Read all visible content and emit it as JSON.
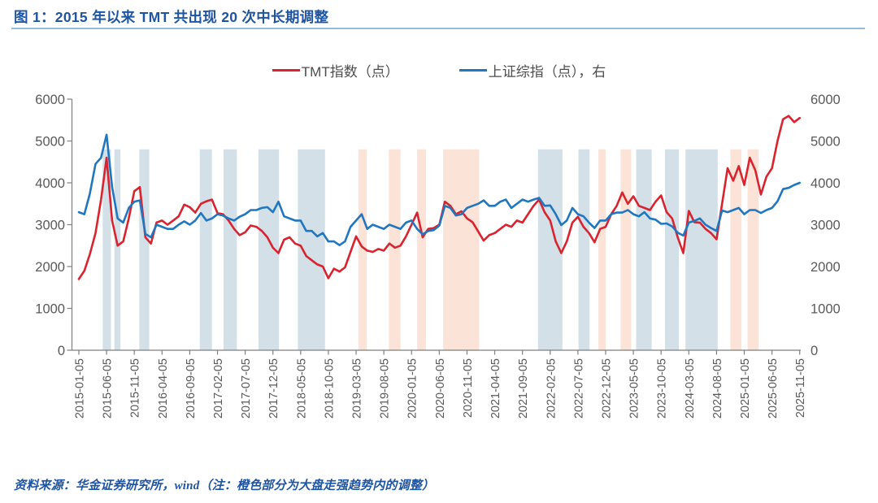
{
  "theme": {
    "accent_text": "#1E55A3",
    "title_underline": "#93BCDE",
    "axis_text": "#595959",
    "legend_text": "#4D4D4D"
  },
  "figure": {
    "title": "图 1：2015 年以来 TMT 共出现 20 次中长期调整",
    "source_note": "资料来源：华金证券研究所，wind（注：橙色部分为大盘走强趋势内的调整）"
  },
  "chart_data": {
    "type": "line",
    "title": "2015年以来TMT共出现20次中长期调整",
    "x_start_month": "2015-01",
    "x_interval": "monthly",
    "x_tick_every_months": 5,
    "x_tick_labels": [
      "2015-01-05",
      "2015-06-05",
      "2015-11-05",
      "2016-04-05",
      "2016-09-05",
      "2017-02-05",
      "2017-07-05",
      "2017-12-05",
      "2018-05-05",
      "2018-10-05",
      "2019-03-05",
      "2019-08-05",
      "2020-01-05",
      "2020-06-05",
      "2020-11-05",
      "2021-04-05",
      "2021-09-05",
      "2022-02-05",
      "2022-07-05",
      "2022-12-05",
      "2023-05-05",
      "2023-10-05",
      "2024-03-05",
      "2024-08-05",
      "2025-01-05",
      "2025-06-05",
      "2025-11-05"
    ],
    "y_left": {
      "min": 0,
      "max": 6000,
      "ticks": [
        0,
        1000,
        2000,
        3000,
        4000,
        5000,
        6000
      ]
    },
    "y_right": {
      "min": 0,
      "max": 6000,
      "ticks": [
        0,
        1000,
        2000,
        3000,
        4000,
        5000,
        6000
      ]
    },
    "grid": false,
    "legend_position": "top-center",
    "series": [
      {
        "name": "TMT指数（点）",
        "axis": "left",
        "color": "#D9232E",
        "values": [
          1700,
          1900,
          2300,
          2800,
          3600,
          4600,
          3100,
          2500,
          2600,
          3150,
          3800,
          3900,
          2700,
          2550,
          3050,
          3100,
          3000,
          3100,
          3200,
          3480,
          3420,
          3290,
          3500,
          3560,
          3600,
          3280,
          3250,
          3100,
          2900,
          2750,
          2820,
          2980,
          2950,
          2850,
          2700,
          2450,
          2320,
          2640,
          2700,
          2550,
          2500,
          2250,
          2150,
          2050,
          2000,
          1720,
          1950,
          1880,
          1980,
          2350,
          2720,
          2480,
          2380,
          2350,
          2420,
          2380,
          2550,
          2450,
          2500,
          2720,
          3000,
          3290,
          2700,
          2900,
          2920,
          3000,
          3550,
          3450,
          3250,
          3320,
          3150,
          3060,
          2840,
          2620,
          2750,
          2800,
          2900,
          3000,
          2950,
          3100,
          3050,
          3250,
          3450,
          3600,
          3300,
          3100,
          2600,
          2320,
          2600,
          3050,
          3190,
          2950,
          2800,
          2580,
          2900,
          2950,
          3250,
          3450,
          3770,
          3500,
          3680,
          3450,
          3400,
          3350,
          3550,
          3700,
          3300,
          3150,
          2700,
          2320,
          3330,
          3060,
          3050,
          2900,
          2800,
          2650,
          3500,
          4350,
          4050,
          4400,
          3950,
          4600,
          4300,
          3720,
          4150,
          4350,
          5000,
          5520,
          5600,
          5450,
          5550
        ]
      },
      {
        "name": "上证综指（点），右",
        "axis": "right",
        "color": "#2176C0",
        "values": [
          3300,
          3250,
          3750,
          4450,
          4600,
          5150,
          3900,
          3150,
          3050,
          3400,
          3550,
          3580,
          2780,
          2700,
          3000,
          2950,
          2900,
          2900,
          3000,
          3080,
          3000,
          3100,
          3280,
          3100,
          3150,
          3250,
          3220,
          3150,
          3100,
          3190,
          3250,
          3350,
          3350,
          3400,
          3420,
          3300,
          3550,
          3200,
          3150,
          3100,
          3100,
          2850,
          2850,
          2720,
          2800,
          2600,
          2600,
          2510,
          2600,
          2950,
          3100,
          3250,
          2900,
          3000,
          2950,
          2900,
          3000,
          2950,
          2900,
          3050,
          3100,
          2900,
          2770,
          2850,
          2870,
          2980,
          3450,
          3400,
          3220,
          3250,
          3400,
          3450,
          3500,
          3580,
          3450,
          3450,
          3550,
          3600,
          3400,
          3500,
          3600,
          3550,
          3600,
          3640,
          3450,
          3460,
          3250,
          2990,
          3100,
          3400,
          3250,
          3200,
          3050,
          2920,
          3100,
          3100,
          3250,
          3290,
          3290,
          3350,
          3250,
          3200,
          3300,
          3150,
          3120,
          3020,
          3030,
          2960,
          2810,
          2740,
          3050,
          3090,
          3150,
          3000,
          2920,
          2850,
          3340,
          3300,
          3350,
          3400,
          3250,
          3350,
          3350,
          3280,
          3350,
          3400,
          3560,
          3850,
          3880,
          3950,
          4000
        ]
      }
    ],
    "adjustment_bands": {
      "note": "橙色部分为大盘走强趋势内的调整",
      "top_value": 4800,
      "colors": {
        "weak": "#D3E0E8",
        "strong": "#FBE3D7"
      },
      "bands": [
        {
          "from": 4.3,
          "to": 5.8,
          "type": "weak"
        },
        {
          "from": 6.4,
          "to": 7.5,
          "type": "weak"
        },
        {
          "from": 10.9,
          "to": 12.7,
          "type": "weak"
        },
        {
          "from": 21.8,
          "to": 24.0,
          "type": "weak"
        },
        {
          "from": 26.1,
          "to": 28.5,
          "type": "weak"
        },
        {
          "from": 32.4,
          "to": 36.1,
          "type": "weak"
        },
        {
          "from": 39.5,
          "to": 44.4,
          "type": "weak"
        },
        {
          "from": 50.4,
          "to": 51.9,
          "type": "strong"
        },
        {
          "from": 55.9,
          "to": 58.0,
          "type": "strong"
        },
        {
          "from": 61.0,
          "to": 62.6,
          "type": "strong"
        },
        {
          "from": 65.7,
          "to": 72.2,
          "type": "strong"
        },
        {
          "from": 82.8,
          "to": 87.2,
          "type": "weak"
        },
        {
          "from": 90.1,
          "to": 92.1,
          "type": "weak"
        },
        {
          "from": 93.7,
          "to": 95.0,
          "type": "strong"
        },
        {
          "from": 97.7,
          "to": 99.6,
          "type": "strong"
        },
        {
          "from": 100.5,
          "to": 103.3,
          "type": "weak"
        },
        {
          "from": 105.7,
          "to": 108.2,
          "type": "weak"
        },
        {
          "from": 109.4,
          "to": 115.2,
          "type": "weak"
        },
        {
          "from": 117.5,
          "to": 119.5,
          "type": "strong"
        },
        {
          "from": 120.6,
          "to": 122.6,
          "type": "strong"
        }
      ]
    }
  }
}
